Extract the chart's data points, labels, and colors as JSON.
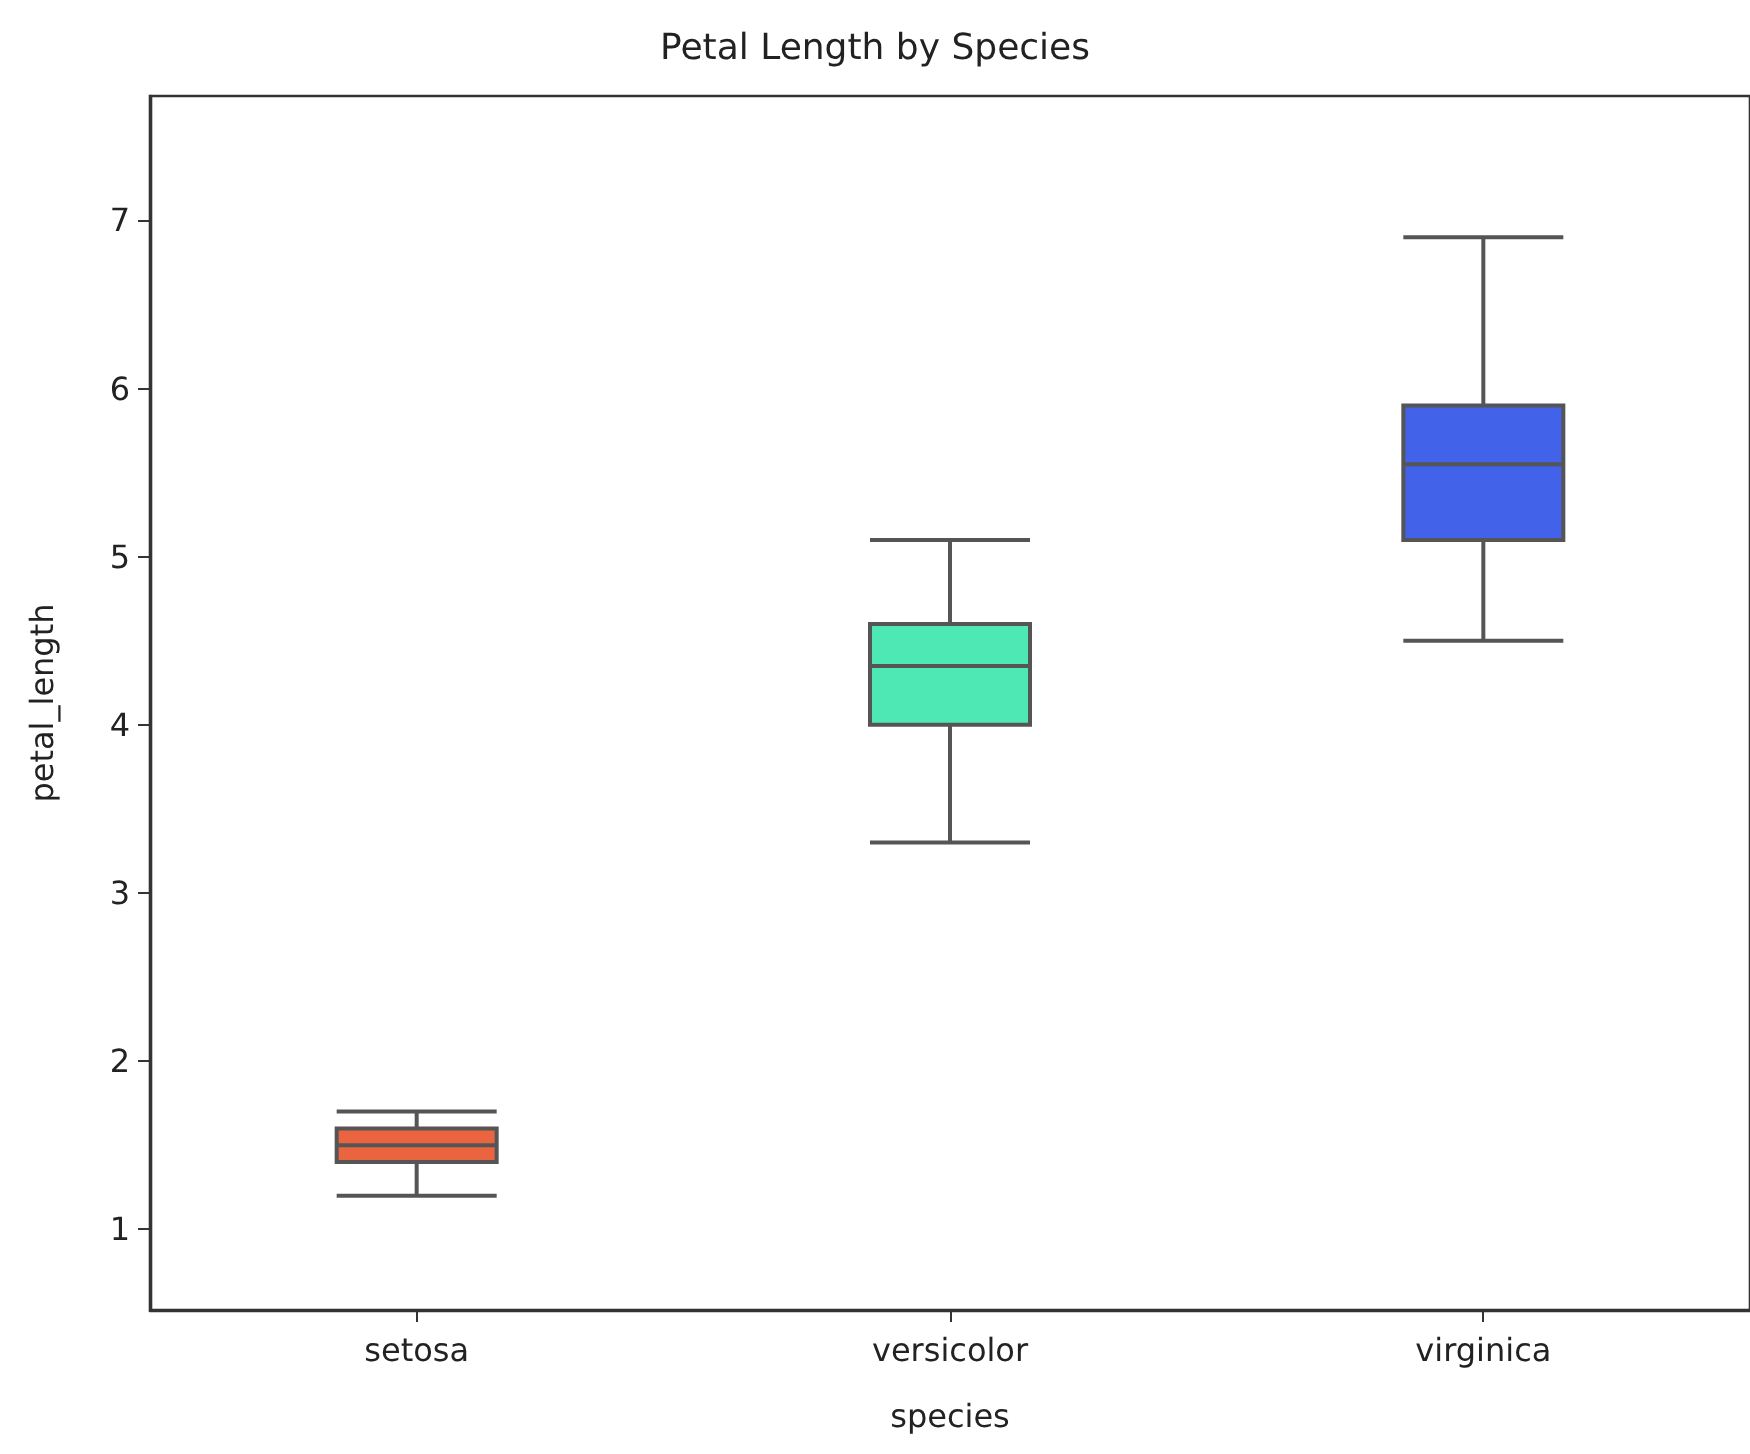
{
  "chart_data": {
    "type": "box",
    "title": "Petal Length by Species",
    "xlabel": "species",
    "ylabel": "petal_length",
    "categories": [
      "setosa",
      "versicolor",
      "virginica"
    ],
    "boxes": [
      {
        "low": 1.2,
        "q1": 1.4,
        "median": 1.5,
        "q3": 1.6,
        "high": 1.7
      },
      {
        "low": 3.3,
        "q1": 4.0,
        "median": 4.35,
        "q3": 4.6,
        "high": 5.1
      },
      {
        "low": 4.5,
        "q1": 5.1,
        "median": 5.55,
        "q3": 5.9,
        "high": 6.9
      }
    ],
    "colors": [
      "#e9643f",
      "#4ee8b4",
      "#4262e9"
    ],
    "ylim": [
      0.52,
      7.74
    ],
    "yticks": [
      1,
      2,
      3,
      4,
      5,
      6,
      7
    ]
  }
}
